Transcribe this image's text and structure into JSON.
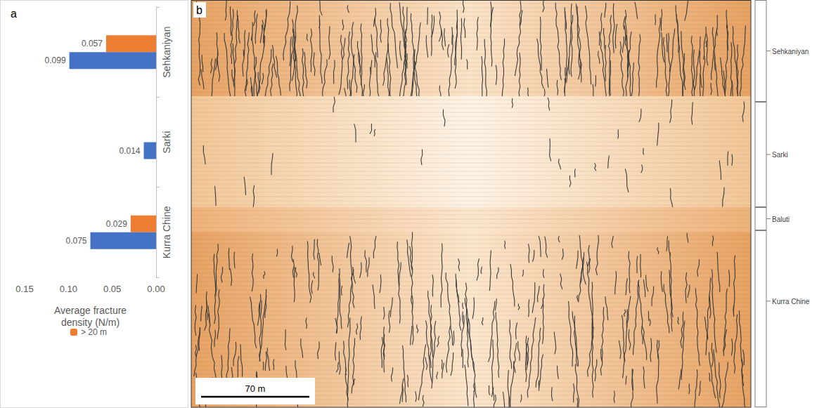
{
  "chart_data": {
    "type": "bar",
    "panel_label": "a",
    "orientation": "horizontal",
    "categories": [
      "Sehkaniyan",
      "Sarki",
      "Kurra Chine"
    ],
    "series": [
      {
        "name": "> 20 m",
        "color": "#ED7D31",
        "values": [
          0.057,
          null,
          0.029
        ]
      },
      {
        "color": "#4472C4",
        "values": [
          0.099,
          0.014,
          0.075
        ]
      }
    ],
    "x_label": "Average fracture density (N/m)",
    "xlim": [
      0.15,
      0
    ],
    "xticks": [
      {
        "value": 0.15,
        "label": "0.15"
      },
      {
        "value": 0.1,
        "label": "0.10"
      },
      {
        "value": 0.05,
        "label": "0.05"
      },
      {
        "value": 0,
        "label": "0.00"
      }
    ],
    "data_labels": true,
    "legend": "bottom",
    "grid": false
  },
  "fracture_map": {
    "panel_label": "b",
    "scale_bar": "70 m",
    "units": [
      "Sehkaniyan",
      "Sarki",
      "Baluti",
      "Kurra Chine"
    ]
  }
}
